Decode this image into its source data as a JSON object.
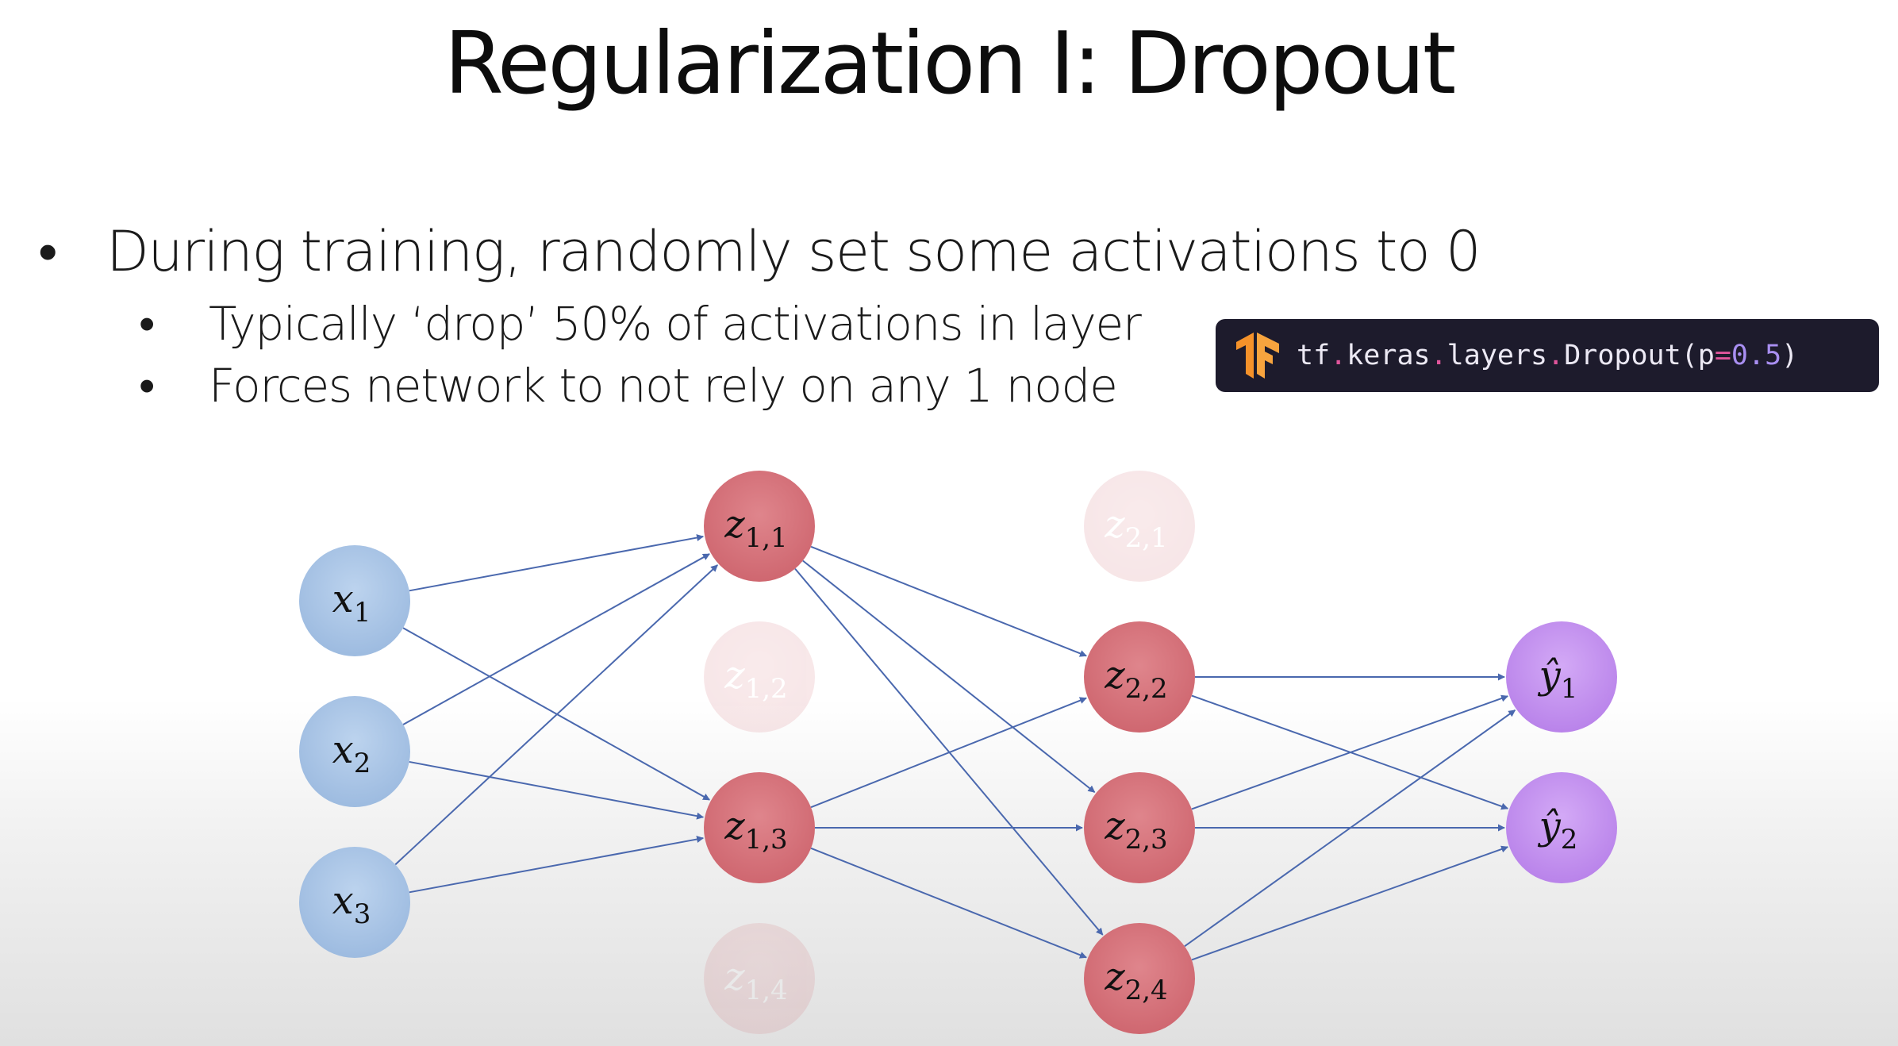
{
  "title": "Regularization I: Dropout",
  "bullets": {
    "main": "During training, randomly set some activations to 0",
    "sub1": "Typically ‘drop’ 50% of activations in layer",
    "sub2": "Forces network to not rely on any 1 node"
  },
  "code": {
    "tf": "tf",
    "keras": "keras",
    "layers": "layers",
    "dropout": "Dropout(p",
    "eq": "=",
    "value": "0.5",
    "close": ")",
    "dot": "."
  },
  "colors": {
    "input": "#a6c4e6",
    "hidden": "#d9737b",
    "output": "#c28ff0",
    "edge": "#4a68ae",
    "code_bg": "#1d1b2c",
    "logo": "#f5922a"
  },
  "network": {
    "inputs": [
      {
        "base": "x",
        "sub": "1",
        "dropped": false
      },
      {
        "base": "x",
        "sub": "2",
        "dropped": false
      },
      {
        "base": "x",
        "sub": "3",
        "dropped": false
      }
    ],
    "hidden1": [
      {
        "base": "z",
        "sub": "1,1",
        "dropped": false
      },
      {
        "base": "z",
        "sub": "1,2",
        "dropped": true
      },
      {
        "base": "z",
        "sub": "1,3",
        "dropped": false
      },
      {
        "base": "z",
        "sub": "1,4",
        "dropped": true
      }
    ],
    "hidden2": [
      {
        "base": "z",
        "sub": "2,1",
        "dropped": true
      },
      {
        "base": "z",
        "sub": "2,2",
        "dropped": false
      },
      {
        "base": "z",
        "sub": "2,3",
        "dropped": false
      },
      {
        "base": "z",
        "sub": "2,4",
        "dropped": false
      }
    ],
    "outputs": [
      {
        "base": "ŷ",
        "sub": "1",
        "dropped": false
      },
      {
        "base": "ŷ",
        "sub": "2",
        "dropped": false
      }
    ]
  }
}
